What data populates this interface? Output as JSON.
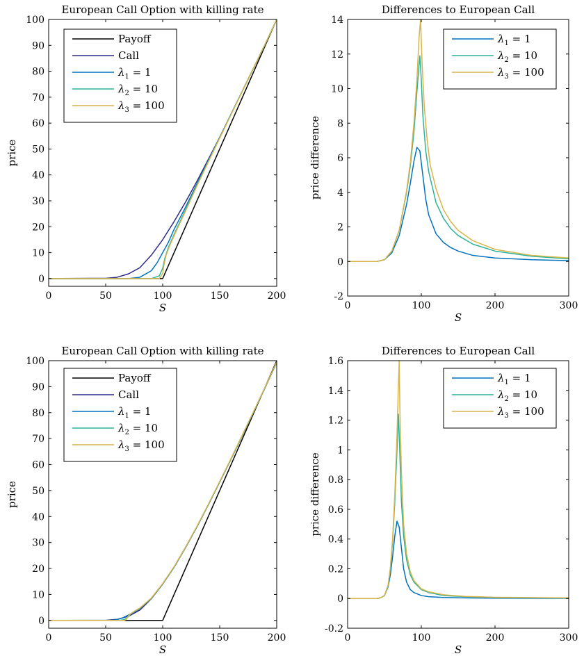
{
  "chart_data": [
    {
      "type": "line",
      "title": "European Call Option with killing rate",
      "xlabel": "S",
      "ylabel": "price",
      "xlim": [
        0,
        200
      ],
      "ylim": [
        -3,
        100
      ],
      "xticks": [
        0,
        50,
        100,
        150,
        200
      ],
      "yticks": [
        0,
        10,
        20,
        30,
        40,
        50,
        60,
        70,
        80,
        90,
        100
      ],
      "legend": "top-left",
      "series": [
        {
          "name": "Payoff",
          "color": "#000000",
          "x": [
            0,
            100,
            200
          ],
          "y": [
            0,
            0,
            100
          ]
        },
        {
          "name": "Call",
          "color": "#2e2a86",
          "x": [
            0,
            50,
            60,
            70,
            80,
            90,
            100,
            110,
            120,
            130,
            140,
            150,
            160,
            170,
            180,
            190,
            200
          ],
          "y": [
            0,
            0.1,
            0.5,
            1.8,
            4.2,
            9,
            15,
            22,
            29.5,
            37.5,
            46,
            54.5,
            63.5,
            72.5,
            81.5,
            90.5,
            100
          ]
        },
        {
          "name": "λ1 = 1",
          "color": "#0072bd",
          "x": [
            0,
            70,
            80,
            90,
            95,
            100,
            105,
            110,
            120,
            130,
            140,
            150,
            160,
            170,
            180,
            190,
            200
          ],
          "y": [
            0,
            0,
            0.5,
            3,
            6,
            10,
            14,
            19,
            27.5,
            36.5,
            45.5,
            54.5,
            63.5,
            72.5,
            81.5,
            90.5,
            100
          ]
        },
        {
          "name": "λ2 = 10",
          "color": "#2bb39a",
          "x": [
            0,
            90,
            97,
            100,
            102,
            105,
            110,
            120,
            130,
            140,
            150,
            160,
            170,
            180,
            190,
            200
          ],
          "y": [
            0,
            0,
            1,
            4,
            8,
            12,
            17,
            26.5,
            36,
            45.2,
            54.3,
            63.4,
            72.5,
            81.5,
            90.6,
            100
          ]
        },
        {
          "name": "λ3 = 100",
          "color": "#d9b44a",
          "x": [
            0,
            97,
            100,
            101,
            103,
            106,
            110,
            120,
            130,
            140,
            150,
            160,
            170,
            180,
            190,
            200
          ],
          "y": [
            0,
            0,
            2,
            5,
            9,
            12.5,
            16.5,
            26,
            35.7,
            45,
            54.2,
            63.3,
            72.4,
            81.5,
            90.6,
            100
          ]
        }
      ]
    },
    {
      "type": "line",
      "title": "Differences to European Call",
      "xlabel": "S",
      "ylabel": "price difference",
      "xlim": [
        0,
        300
      ],
      "ylim": [
        -2,
        14
      ],
      "xticks": [
        0,
        100,
        200,
        300
      ],
      "yticks": [
        -2,
        0,
        2,
        4,
        6,
        8,
        10,
        12,
        14
      ],
      "legend": "top-right",
      "series": [
        {
          "name": "λ1 = 1",
          "color": "#0072bd",
          "x": [
            0,
            40,
            50,
            60,
            70,
            80,
            85,
            90,
            94,
            98,
            102,
            106,
            110,
            120,
            130,
            140,
            150,
            170,
            200,
            250,
            300
          ],
          "y": [
            0,
            0,
            0.1,
            0.5,
            1.5,
            3.3,
            4.5,
            5.8,
            6.6,
            6.4,
            5.0,
            3.6,
            2.7,
            1.6,
            1.1,
            0.8,
            0.6,
            0.35,
            0.2,
            0.1,
            0.05
          ]
        },
        {
          "name": "λ2 = 10",
          "color": "#2bb39a",
          "x": [
            0,
            40,
            50,
            60,
            70,
            80,
            85,
            90,
            94,
            98,
            100,
            102,
            106,
            110,
            120,
            130,
            140,
            150,
            170,
            200,
            250,
            300
          ],
          "y": [
            0,
            0,
            0.1,
            0.6,
            1.8,
            4.0,
            5.5,
            7.5,
            9.8,
            11.9,
            10.5,
            8.5,
            6.4,
            5.2,
            3.4,
            2.5,
            1.9,
            1.5,
            1.0,
            0.6,
            0.3,
            0.15
          ]
        },
        {
          "name": "λ3 = 100",
          "color": "#d9b44a",
          "x": [
            0,
            40,
            50,
            60,
            70,
            80,
            85,
            90,
            94,
            97,
            99,
            101,
            104,
            108,
            112,
            120,
            130,
            140,
            150,
            170,
            200,
            250,
            300
          ],
          "y": [
            0,
            0,
            0.1,
            0.6,
            1.8,
            4.1,
            5.7,
            8.0,
            10.5,
            13.0,
            14,
            11.5,
            9.0,
            7.0,
            5.6,
            4.2,
            3.0,
            2.3,
            1.8,
            1.2,
            0.7,
            0.35,
            0.2
          ]
        }
      ]
    },
    {
      "type": "line",
      "title": "European Call Option with killing rate",
      "xlabel": "S",
      "ylabel": "price",
      "xlim": [
        0,
        200
      ],
      "ylim": [
        -3,
        100
      ],
      "xticks": [
        0,
        50,
        100,
        150,
        200
      ],
      "yticks": [
        0,
        10,
        20,
        30,
        40,
        50,
        60,
        70,
        80,
        90,
        100
      ],
      "legend": "top-left",
      "series": [
        {
          "name": "Payoff",
          "color": "#000000",
          "x": [
            0,
            100,
            200
          ],
          "y": [
            0,
            0,
            100
          ]
        },
        {
          "name": "Call",
          "color": "#2e2a86",
          "x": [
            0,
            50,
            60,
            70,
            80,
            90,
            100,
            110,
            120,
            130,
            140,
            150,
            160,
            170,
            180,
            190,
            200
          ],
          "y": [
            0,
            0.05,
            0.4,
            1.6,
            4.0,
            8.3,
            14,
            20.5,
            28,
            36,
            44.5,
            53.3,
            62.2,
            71.3,
            80.5,
            89.8,
            99.3
          ]
        },
        {
          "name": "λ1 = 1",
          "color": "#0072bd",
          "x": [
            0,
            55,
            60,
            65,
            70,
            75,
            80,
            90,
            100,
            110,
            120,
            130,
            140,
            150,
            160,
            170,
            180,
            190,
            200
          ],
          "y": [
            0,
            0,
            0.3,
            1.0,
            2.1,
            3.2,
            4.6,
            8.4,
            14,
            20.5,
            28,
            36,
            44.5,
            53.3,
            62.2,
            71.3,
            80.5,
            89.8,
            99.3
          ]
        },
        {
          "name": "λ2 = 10",
          "color": "#2bb39a",
          "x": [
            0,
            62,
            66,
            69,
            72,
            75,
            80,
            90,
            100,
            110,
            120,
            130,
            140,
            150,
            160,
            170,
            180,
            190,
            200
          ],
          "y": [
            0,
            0,
            0.3,
            1.0,
            2.5,
            3.4,
            4.7,
            8.5,
            14.1,
            20.6,
            28.1,
            36.1,
            44.6,
            53.4,
            62.3,
            71.4,
            80.6,
            89.9,
            99.4
          ]
        },
        {
          "name": "λ3 = 100",
          "color": "#d9b44a",
          "x": [
            0,
            66,
            68,
            70,
            72,
            75,
            80,
            90,
            100,
            110,
            120,
            130,
            140,
            150,
            160,
            170,
            180,
            190,
            200
          ],
          "y": [
            0,
            0,
            0.4,
            1.8,
            2.6,
            3.5,
            4.8,
            8.6,
            14.2,
            20.7,
            28.2,
            36.2,
            44.7,
            53.5,
            62.4,
            71.5,
            80.7,
            90.0,
            99.5
          ]
        }
      ]
    },
    {
      "type": "line",
      "title": "Differences to European Call",
      "xlabel": "S",
      "ylabel": "price difference",
      "xlim": [
        0,
        300
      ],
      "ylim": [
        -0.2,
        1.6
      ],
      "xticks": [
        0,
        100,
        200,
        300
      ],
      "yticks": [
        -0.2,
        0,
        0.2,
        0.4,
        0.6,
        0.8,
        1,
        1.2,
        1.4,
        1.6
      ],
      "legend": "top-right",
      "series": [
        {
          "name": "λ1 = 1",
          "color": "#0072bd",
          "x": [
            0,
            40,
            45,
            50,
            55,
            58,
            61,
            64,
            67,
            70,
            73,
            76,
            80,
            85,
            90,
            100,
            110,
            130,
            160,
            200,
            300
          ],
          "y": [
            0,
            0,
            0.005,
            0.02,
            0.08,
            0.16,
            0.28,
            0.42,
            0.52,
            0.48,
            0.34,
            0.2,
            0.11,
            0.06,
            0.04,
            0.02,
            0.012,
            0.007,
            0.004,
            0.002,
            0.001
          ]
        },
        {
          "name": "λ2 = 10",
          "color": "#2bb39a",
          "x": [
            0,
            40,
            45,
            50,
            55,
            58,
            61,
            64,
            67,
            69,
            71,
            73,
            76,
            80,
            85,
            90,
            100,
            110,
            130,
            160,
            200,
            300
          ],
          "y": [
            0,
            0,
            0.005,
            0.02,
            0.09,
            0.2,
            0.38,
            0.65,
            1.0,
            1.24,
            0.95,
            0.65,
            0.42,
            0.26,
            0.16,
            0.11,
            0.06,
            0.04,
            0.02,
            0.012,
            0.007,
            0.003
          ]
        },
        {
          "name": "λ3 = 100",
          "color": "#d9b44a",
          "x": [
            0,
            40,
            45,
            50,
            55,
            58,
            61,
            64,
            67,
            69,
            70,
            71,
            73,
            76,
            80,
            85,
            90,
            100,
            110,
            130,
            160,
            200,
            300
          ],
          "y": [
            0,
            0,
            0.005,
            0.02,
            0.09,
            0.21,
            0.4,
            0.7,
            1.1,
            1.45,
            1.6,
            1.25,
            0.85,
            0.5,
            0.3,
            0.18,
            0.12,
            0.065,
            0.045,
            0.025,
            0.014,
            0.008,
            0.004
          ]
        }
      ]
    }
  ]
}
